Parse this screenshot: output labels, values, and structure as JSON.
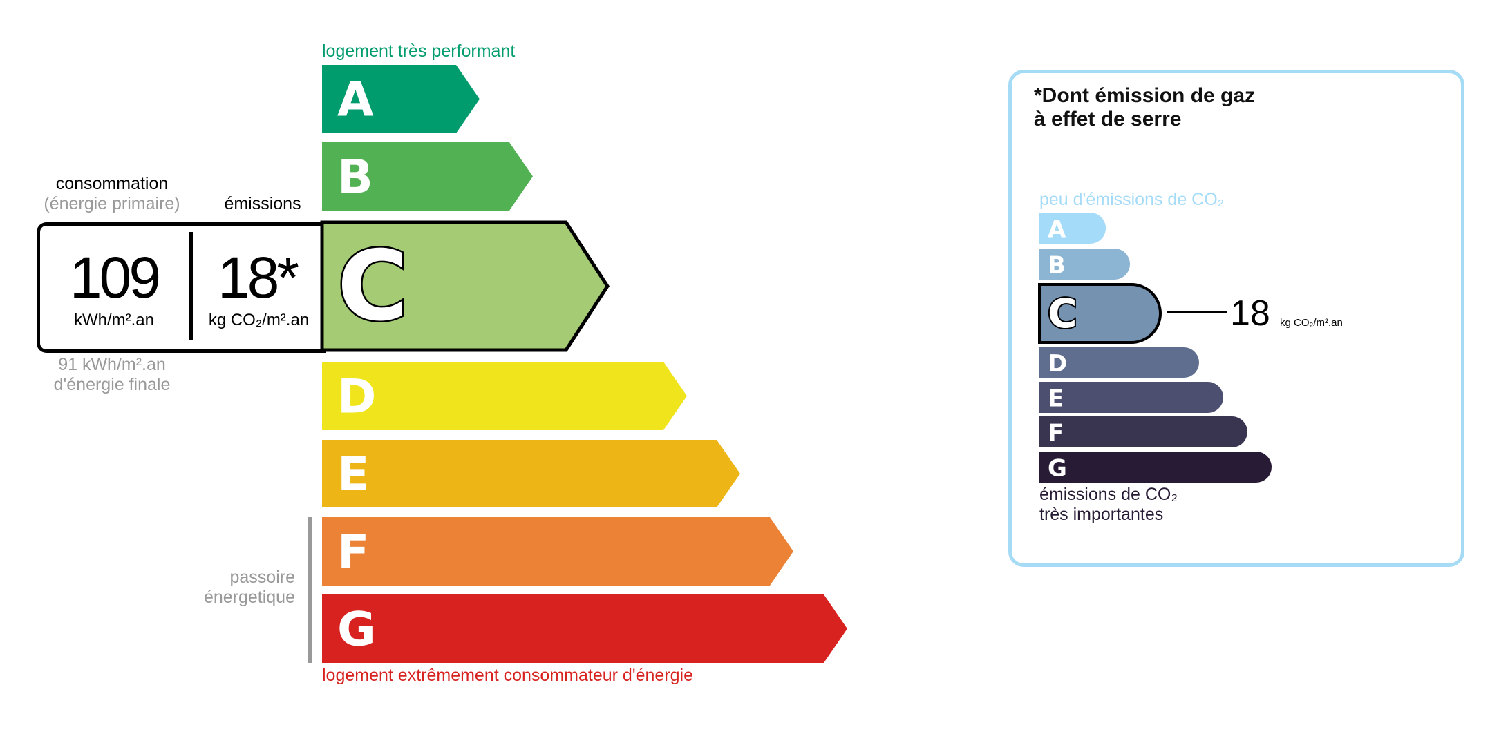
{
  "energy": {
    "top_label": "logement très performant",
    "bottom_label": "logement extrêmement consommateur d'énergie",
    "passoire_label": [
      "passoire",
      "énergetique"
    ],
    "classes": [
      {
        "letter": "A",
        "color": "#009c6d"
      },
      {
        "letter": "B",
        "color": "#52b153"
      },
      {
        "letter": "C",
        "color": "#a5cc74"
      },
      {
        "letter": "D",
        "color": "#f0e51c"
      },
      {
        "letter": "E",
        "color": "#edb616"
      },
      {
        "letter": "F",
        "color": "#eb8235"
      },
      {
        "letter": "G",
        "color": "#d7221f"
      }
    ],
    "current_class": "C",
    "consumption_header": "consommation",
    "consumption_subheader": "(énergie primaire)",
    "emissions_header": "émissions",
    "consumption_value": "109",
    "consumption_unit": "kWh/m².an",
    "emissions_value": "18*",
    "emissions_unit": "kg CO₂/m².an",
    "final_energy_value": "91 kWh/m².an",
    "final_energy_label": "d'énergie finale"
  },
  "ges": {
    "title_line1": "*Dont émission de gaz",
    "title_line2": "à effet de serre",
    "top_label": "peu d'émissions de CO₂",
    "bottom_label_line1": "émissions de CO₂",
    "bottom_label_line2": "très importantes",
    "classes": [
      {
        "letter": "A",
        "color": "#a4dbf8"
      },
      {
        "letter": "B",
        "color": "#8cb4d3"
      },
      {
        "letter": "C",
        "color": "#7692b1"
      },
      {
        "letter": "D",
        "color": "#5f6e8f"
      },
      {
        "letter": "E",
        "color": "#4c4f6f"
      },
      {
        "letter": "F",
        "color": "#393551"
      },
      {
        "letter": "G",
        "color": "#281b35"
      }
    ],
    "current_class": "C",
    "value": "18",
    "unit": "kg CO₂/m².an",
    "border_color": "#a6dbf5"
  }
}
